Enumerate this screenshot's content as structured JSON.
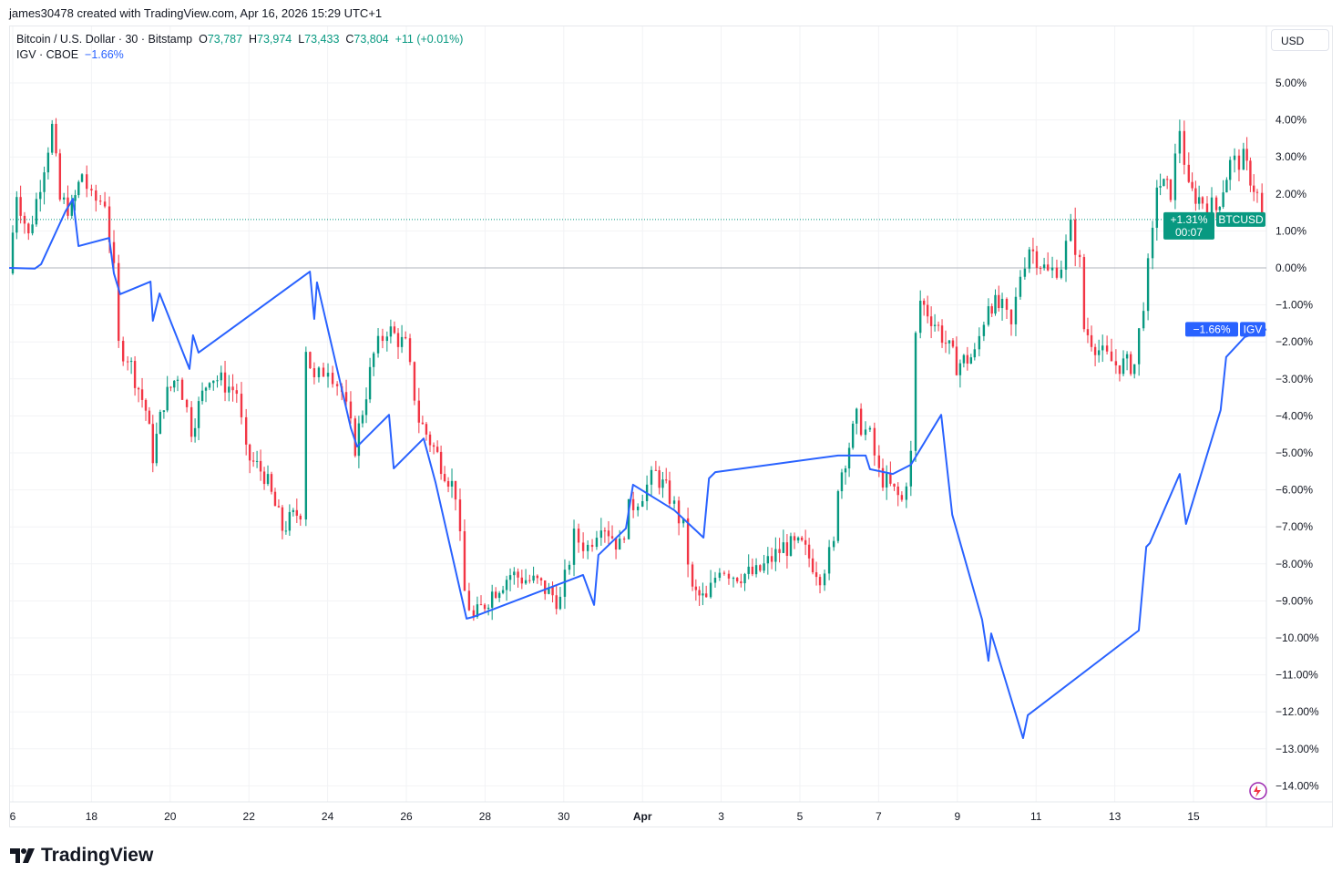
{
  "credit": "james30478 created with TradingView.com, Apr 16, 2026 15:29 UTC+1",
  "legend": {
    "symbol": "Bitcoin / U.S. Dollar · 30 · Bitstamp",
    "o_label": "O",
    "o": "73,787",
    "h_label": "H",
    "h": "73,974",
    "l_label": "L",
    "l": "73,433",
    "c_label": "C",
    "c": "73,804",
    "change": "+11 (+0.01%)",
    "igv_name": "IGV · CBOE",
    "igv_value": "−1.66%"
  },
  "currency_button": "USD",
  "logo": "TradingView",
  "colors": {
    "up": "#089981",
    "down": "#f23645",
    "igv": "#2962ff"
  },
  "chart_data": {
    "type": "line",
    "title": "Bitcoin / U.S. Dollar vs IGV (% change)",
    "xlabel": "",
    "ylabel": "%",
    "ylim": [
      -14.5,
      5.7
    ],
    "x_unit": "days since Mar 16",
    "xticks": [
      {
        "d": 0,
        "label": "6"
      },
      {
        "d": 2,
        "label": "18"
      },
      {
        "d": 4,
        "label": "20"
      },
      {
        "d": 6,
        "label": "22"
      },
      {
        "d": 8,
        "label": "24"
      },
      {
        "d": 10,
        "label": "26"
      },
      {
        "d": 12,
        "label": "28"
      },
      {
        "d": 14,
        "label": "30"
      },
      {
        "d": 16,
        "label": "Apr"
      },
      {
        "d": 18,
        "label": "3"
      },
      {
        "d": 20,
        "label": "5"
      },
      {
        "d": 22,
        "label": "7"
      },
      {
        "d": 24,
        "label": "9"
      },
      {
        "d": 26,
        "label": "11"
      },
      {
        "d": 28,
        "label": "13"
      },
      {
        "d": 30,
        "label": "15"
      }
    ],
    "yticks": [
      5,
      4,
      3,
      2,
      1,
      0,
      -1,
      -2,
      -3,
      -4,
      -5,
      -6,
      -7,
      -8,
      -9,
      -10,
      -11,
      -12,
      -13,
      -14
    ],
    "series": [
      {
        "name": "BTCUSD",
        "kind": "candles",
        "last_label": "+1.31%",
        "countdown": "00:07",
        "points": [
          [
            -0.1,
            -0.15
          ],
          [
            0.1,
            2.07
          ],
          [
            0.4,
            0.84
          ],
          [
            0.7,
            2.32
          ],
          [
            1.0,
            3.79
          ],
          [
            1.2,
            1.82
          ],
          [
            1.5,
            1.58
          ],
          [
            1.76,
            2.56
          ],
          [
            2.0,
            1.82
          ],
          [
            2.34,
            1.82
          ],
          [
            2.57,
            -0.15
          ],
          [
            2.69,
            -2.12
          ],
          [
            2.92,
            -2.36
          ],
          [
            3.38,
            -3.84
          ],
          [
            3.56,
            -5.07
          ],
          [
            3.84,
            -3.6
          ],
          [
            4.19,
            -2.86
          ],
          [
            4.54,
            -4.33
          ],
          [
            5.0,
            -2.86
          ],
          [
            5.69,
            -3.35
          ],
          [
            5.93,
            -5.07
          ],
          [
            6.39,
            -5.57
          ],
          [
            6.85,
            -7.04
          ],
          [
            7.31,
            -6.55
          ],
          [
            7.45,
            -2.12
          ],
          [
            7.66,
            -3.1
          ],
          [
            8.01,
            -2.61
          ],
          [
            8.36,
            -3.35
          ],
          [
            8.7,
            -4.83
          ],
          [
            9.17,
            -2.36
          ],
          [
            9.51,
            -1.63
          ],
          [
            9.98,
            -2.12
          ],
          [
            10.32,
            -4.09
          ],
          [
            10.79,
            -5.07
          ],
          [
            11.25,
            -6.06
          ],
          [
            11.48,
            -8.77
          ],
          [
            11.71,
            -9.51
          ],
          [
            12.18,
            -8.77
          ],
          [
            12.64,
            -8.28
          ],
          [
            13.33,
            -8.52
          ],
          [
            13.91,
            -9.01
          ],
          [
            14.26,
            -7.29
          ],
          [
            14.61,
            -7.54
          ],
          [
            14.95,
            -6.8
          ],
          [
            15.42,
            -7.54
          ],
          [
            15.65,
            -6.55
          ],
          [
            16.0,
            -6.06
          ],
          [
            16.34,
            -5.57
          ],
          [
            16.69,
            -6.18
          ],
          [
            17.04,
            -7.04
          ],
          [
            17.27,
            -8.77
          ],
          [
            17.62,
            -9.01
          ],
          [
            17.96,
            -8.03
          ],
          [
            18.31,
            -8.28
          ],
          [
            18.89,
            -8.28
          ],
          [
            19.58,
            -7.54
          ],
          [
            20.05,
            -7.54
          ],
          [
            20.51,
            -8.28
          ],
          [
            20.86,
            -7.54
          ],
          [
            20.97,
            -5.81
          ],
          [
            21.44,
            -4.09
          ],
          [
            21.78,
            -4.58
          ],
          [
            22.01,
            -5.57
          ],
          [
            22.59,
            -6.31
          ],
          [
            22.82,
            -5.07
          ],
          [
            22.94,
            -1.87
          ],
          [
            23.06,
            -0.89
          ],
          [
            23.52,
            -1.63
          ],
          [
            23.98,
            -2.61
          ],
          [
            24.44,
            -2.36
          ],
          [
            24.79,
            -0.89
          ],
          [
            25.14,
            -1.13
          ],
          [
            25.37,
            -1.63
          ],
          [
            25.6,
            -0.15
          ],
          [
            25.83,
            0.59
          ],
          [
            26.3,
            -0.15
          ],
          [
            26.64,
            0.1
          ],
          [
            26.88,
            1.08
          ],
          [
            27.11,
            0.1
          ],
          [
            27.22,
            -1.63
          ],
          [
            27.69,
            -2.36
          ],
          [
            28.03,
            -2.61
          ],
          [
            28.5,
            -2.61
          ],
          [
            28.73,
            -0.89
          ],
          [
            28.96,
            0.84
          ],
          [
            29.07,
            2.32
          ],
          [
            29.42,
            2.07
          ],
          [
            29.65,
            3.79
          ],
          [
            29.88,
            2.07
          ],
          [
            30.23,
            1.82
          ],
          [
            30.58,
            1.58
          ],
          [
            30.93,
            2.81
          ],
          [
            31.27,
            2.93
          ],
          [
            31.62,
            1.95
          ],
          [
            31.74,
            1.31
          ]
        ]
      },
      {
        "name": "IGV",
        "kind": "line",
        "last_label": "−1.66%",
        "points": [
          [
            -0.09,
            0
          ],
          [
            0.56,
            -0.02
          ],
          [
            0.72,
            0.1
          ],
          [
            1.34,
            1.53
          ],
          [
            1.53,
            1.87
          ],
          [
            1.67,
            0.59
          ],
          [
            2.45,
            0.81
          ],
          [
            2.57,
            -0.15
          ],
          [
            2.73,
            -0.71
          ],
          [
            3.5,
            -0.37
          ],
          [
            3.56,
            -1.43
          ],
          [
            3.73,
            -0.69
          ],
          [
            4.49,
            -2.73
          ],
          [
            4.58,
            -1.82
          ],
          [
            4.72,
            -2.29
          ],
          [
            7.55,
            -0.1
          ],
          [
            7.66,
            -1.38
          ],
          [
            7.73,
            -0.39
          ],
          [
            8.59,
            -4.33
          ],
          [
            8.75,
            -4.83
          ],
          [
            9.56,
            -3.97
          ],
          [
            9.68,
            -5.42
          ],
          [
            10.44,
            -4.61
          ],
          [
            10.74,
            -5.79
          ],
          [
            11.53,
            -9.48
          ],
          [
            11.71,
            -9.43
          ],
          [
            14.49,
            -8.3
          ],
          [
            14.77,
            -9.11
          ],
          [
            14.88,
            -7.76
          ],
          [
            15.58,
            -7.04
          ],
          [
            15.76,
            -5.86
          ],
          [
            16.81,
            -6.55
          ],
          [
            17.55,
            -7.29
          ],
          [
            17.69,
            -5.69
          ],
          [
            17.85,
            -5.52
          ],
          [
            20.97,
            -5.07
          ],
          [
            21.67,
            -5.07
          ],
          [
            21.78,
            -5.44
          ],
          [
            22.36,
            -5.57
          ],
          [
            22.82,
            -5.32
          ],
          [
            23.59,
            -3.97
          ],
          [
            23.87,
            -6.67
          ],
          [
            24.63,
            -9.51
          ],
          [
            24.79,
            -10.62
          ],
          [
            24.86,
            -9.88
          ],
          [
            25.67,
            -12.71
          ],
          [
            25.79,
            -12.09
          ],
          [
            28.61,
            -9.8
          ],
          [
            28.8,
            -7.54
          ],
          [
            28.89,
            -7.44
          ],
          [
            29.65,
            -5.57
          ],
          [
            29.81,
            -6.92
          ],
          [
            30.69,
            -3.84
          ],
          [
            30.83,
            -2.41
          ],
          [
            31.3,
            -1.87
          ],
          [
            31.85,
            -1.66
          ]
        ]
      }
    ]
  }
}
